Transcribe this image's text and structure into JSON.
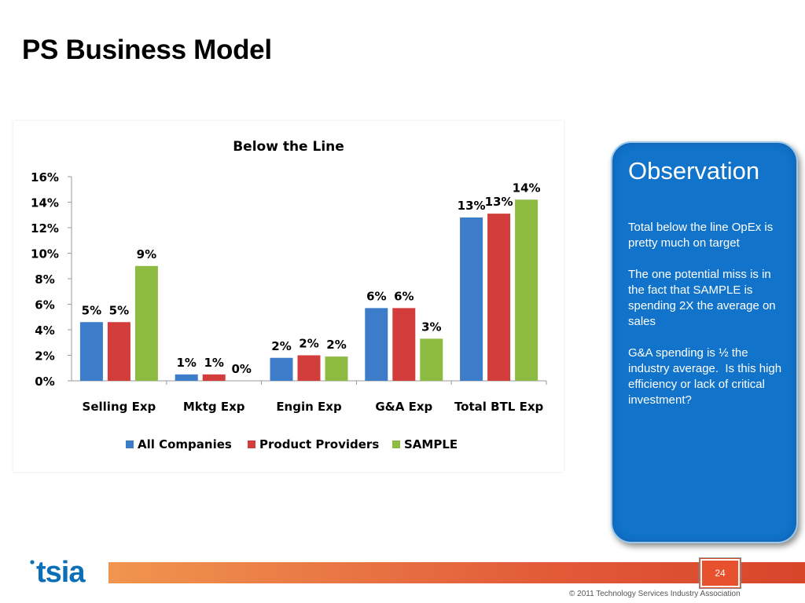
{
  "slide": {
    "title": "PS Business Model",
    "page_number": "24",
    "copyright": "© 2011 Technology Services Industry Association",
    "logo_text": "tsia"
  },
  "observation": {
    "heading": "Observation",
    "paragraphs": [
      "Total below the line OpEx is pretty much on target",
      "The one potential miss is in the fact that SAMPLE is spending 2X the average on sales",
      "G&A spending is ½ the industry average.  Is this high efficiency or lack of critical investment?"
    ]
  },
  "chart_data": {
    "type": "bar",
    "title": "Below the Line",
    "categories": [
      "Selling Exp",
      "Mktg Exp",
      "Engin Exp",
      "G&A Exp",
      "Total BTL Exp"
    ],
    "series": [
      {
        "name": "All Companies",
        "color": "#3d7cc9",
        "values": [
          4.6,
          0.5,
          1.8,
          5.7,
          12.8
        ],
        "labels": [
          "5%",
          "1%",
          "2%",
          "6%",
          "13%"
        ]
      },
      {
        "name": "Product Providers",
        "color": "#d23c3a",
        "values": [
          4.6,
          0.5,
          2.0,
          5.7,
          13.1
        ],
        "labels": [
          "5%",
          "1%",
          "2%",
          "6%",
          "13%"
        ]
      },
      {
        "name": "SAMPLE",
        "color": "#8dbb42",
        "values": [
          9.0,
          0.0,
          1.9,
          3.3,
          14.2
        ],
        "labels": [
          "9%",
          "0%",
          "2%",
          "3%",
          "14%"
        ]
      }
    ],
    "y_ticks": [
      "0%",
      "2%",
      "4%",
      "6%",
      "8%",
      "10%",
      "12%",
      "14%",
      "16%"
    ],
    "ylim": [
      0,
      16
    ],
    "grid": false,
    "legend": "bottom"
  },
  "colors": {
    "observation_panel": "#1173c9",
    "footer_bar": "#e35d3a",
    "logo": "#0b6fb8"
  }
}
